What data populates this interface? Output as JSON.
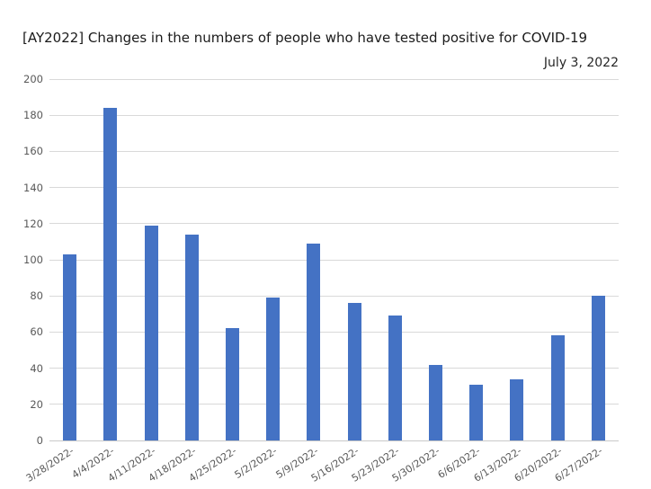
{
  "chart_data": {
    "type": "bar",
    "title": "[AY2022] Changes in the numbers of people who have tested positive for COVID-19",
    "subtitle": "July 3, 2022",
    "categories": [
      "3/28/2022-",
      "4/4/2022-",
      "4/11/2022-",
      "4/18/2022-",
      "4/25/2022-",
      "5/2/2022-",
      "5/9/2022-",
      "5/16/2022-",
      "5/23/2022-",
      "5/30/2022-",
      "6/6/2022-",
      "6/13/2022-",
      "6/20/2022-",
      "6/27/2022-"
    ],
    "values": [
      103,
      184,
      119,
      114,
      62,
      79,
      109,
      76,
      69,
      42,
      31,
      34,
      58,
      80
    ],
    "xlabel": "",
    "ylabel": "",
    "ylim": [
      0,
      200
    ],
    "ytick_step": 20,
    "yticks": [
      0,
      20,
      40,
      60,
      80,
      100,
      120,
      140,
      160,
      180,
      200
    ],
    "grid": true,
    "legend_position": "none",
    "bar_color": "#4472c4",
    "gridline_color": "#d9d9d9",
    "tick_label_color": "#595959",
    "background_color": "#ffffff"
  }
}
